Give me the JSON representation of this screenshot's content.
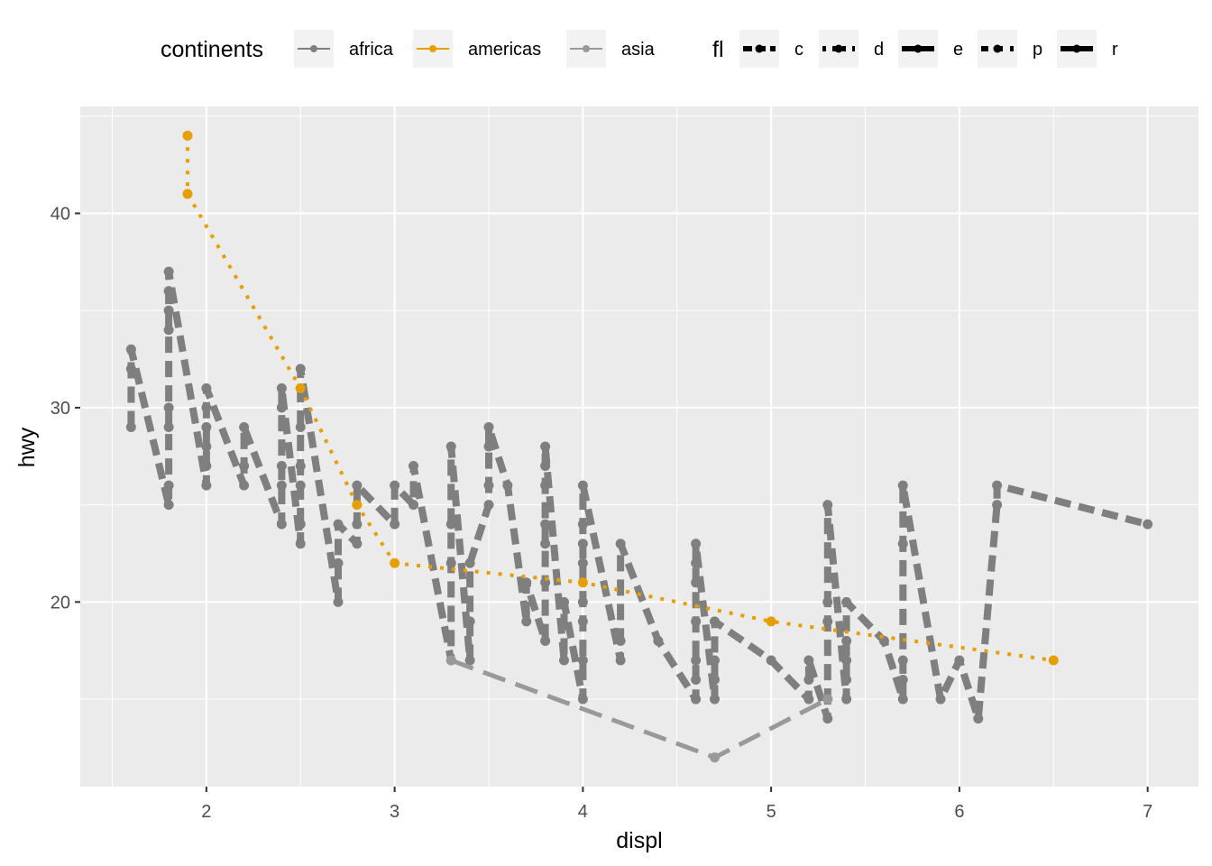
{
  "chart_data": {
    "type": "line",
    "xlabel": "displ",
    "ylabel": "hwy",
    "xlim": [
      1.33,
      7.27
    ],
    "ylim": [
      10.5,
      45.5
    ],
    "x_ticks": [
      2,
      3,
      4,
      5,
      6,
      7
    ],
    "y_ticks": [
      20,
      30,
      40
    ],
    "grid": true,
    "legend_position": "top",
    "legends": [
      {
        "title": "continents",
        "entries": [
          {
            "label": "africa",
            "color": "#7f7f7f"
          },
          {
            "label": "americas",
            "color": "#E69F00"
          },
          {
            "label": "asia",
            "color": "#999999"
          }
        ]
      },
      {
        "title": "fl",
        "entries": [
          {
            "label": "c",
            "dash": "10,5"
          },
          {
            "label": "d",
            "dash": "4,7"
          },
          {
            "label": "e",
            "dash": "16,5"
          },
          {
            "label": "p",
            "dash": "8,8"
          },
          {
            "label": "r",
            "dash": ""
          }
        ]
      }
    ],
    "series": [
      {
        "name": "africa",
        "color": "#7f7f7f",
        "width": 8,
        "dash": "18,9",
        "points": [
          [
            1.6,
            29
          ],
          [
            1.6,
            32
          ],
          [
            1.6,
            33
          ],
          [
            1.8,
            25
          ],
          [
            1.8,
            26
          ],
          [
            1.8,
            29
          ],
          [
            1.8,
            30
          ],
          [
            1.8,
            34
          ],
          [
            1.8,
            35
          ],
          [
            1.8,
            36
          ],
          [
            1.8,
            37
          ],
          [
            2.0,
            26
          ],
          [
            2.0,
            27
          ],
          [
            2.0,
            28
          ],
          [
            2.0,
            29
          ],
          [
            2.0,
            30
          ],
          [
            2.0,
            31
          ],
          [
            2.2,
            26
          ],
          [
            2.2,
            27
          ],
          [
            2.2,
            29
          ],
          [
            2.4,
            24
          ],
          [
            2.4,
            26
          ],
          [
            2.4,
            27
          ],
          [
            2.4,
            30
          ],
          [
            2.4,
            31
          ],
          [
            2.5,
            23
          ],
          [
            2.5,
            24
          ],
          [
            2.5,
            26
          ],
          [
            2.5,
            27
          ],
          [
            2.5,
            29
          ],
          [
            2.5,
            31
          ],
          [
            2.5,
            32
          ],
          [
            2.7,
            20
          ],
          [
            2.7,
            22
          ],
          [
            2.7,
            24
          ],
          [
            2.8,
            23
          ],
          [
            2.8,
            24
          ],
          [
            2.8,
            26
          ],
          [
            3.0,
            24
          ],
          [
            3.0,
            26
          ],
          [
            3.1,
            25
          ],
          [
            3.1,
            27
          ],
          [
            3.3,
            17
          ],
          [
            3.3,
            22
          ],
          [
            3.3,
            24
          ],
          [
            3.3,
            28
          ],
          [
            3.4,
            17
          ],
          [
            3.4,
            19
          ],
          [
            3.4,
            22
          ],
          [
            3.5,
            25
          ],
          [
            3.5,
            26
          ],
          [
            3.5,
            28
          ],
          [
            3.5,
            29
          ],
          [
            3.6,
            26
          ],
          [
            3.7,
            19
          ],
          [
            3.7,
            21
          ],
          [
            3.8,
            18
          ],
          [
            3.8,
            21
          ],
          [
            3.8,
            23
          ],
          [
            3.8,
            24
          ],
          [
            3.8,
            26
          ],
          [
            3.8,
            27
          ],
          [
            3.8,
            28
          ],
          [
            3.9,
            17
          ],
          [
            3.9,
            20
          ],
          [
            4.0,
            15
          ],
          [
            4.0,
            17
          ],
          [
            4.0,
            19
          ],
          [
            4.0,
            20
          ],
          [
            4.0,
            22
          ],
          [
            4.0,
            23
          ],
          [
            4.0,
            24
          ],
          [
            4.0,
            26
          ],
          [
            4.2,
            17
          ],
          [
            4.2,
            18
          ],
          [
            4.2,
            23
          ],
          [
            4.4,
            18
          ],
          [
            4.6,
            15
          ],
          [
            4.6,
            16
          ],
          [
            4.6,
            17
          ],
          [
            4.6,
            19
          ],
          [
            4.6,
            21
          ],
          [
            4.6,
            22
          ],
          [
            4.6,
            23
          ],
          [
            4.7,
            15
          ],
          [
            4.7,
            16
          ],
          [
            4.7,
            17
          ],
          [
            4.7,
            19
          ],
          [
            5.0,
            17
          ],
          [
            5.2,
            15
          ],
          [
            5.2,
            16
          ],
          [
            5.2,
            17
          ],
          [
            5.3,
            14
          ],
          [
            5.3,
            15
          ],
          [
            5.3,
            19
          ],
          [
            5.3,
            20
          ],
          [
            5.3,
            25
          ],
          [
            5.4,
            15
          ],
          [
            5.4,
            16
          ],
          [
            5.4,
            17
          ],
          [
            5.4,
            18
          ],
          [
            5.4,
            20
          ],
          [
            5.6,
            18
          ],
          [
            5.7,
            15
          ],
          [
            5.7,
            16
          ],
          [
            5.7,
            17
          ],
          [
            5.7,
            23
          ],
          [
            5.7,
            26
          ],
          [
            5.9,
            15
          ],
          [
            6.0,
            17
          ],
          [
            6.1,
            14
          ],
          [
            6.2,
            25
          ],
          [
            6.2,
            26
          ],
          [
            7.0,
            24
          ]
        ]
      },
      {
        "name": "americas",
        "color": "#E69F00",
        "width": 4,
        "dash": "4,9",
        "points": [
          [
            1.9,
            44
          ],
          [
            1.9,
            41
          ],
          [
            2.5,
            31
          ],
          [
            2.8,
            25
          ],
          [
            3.0,
            22
          ],
          [
            4.0,
            21
          ],
          [
            5.0,
            19
          ],
          [
            6.5,
            17
          ]
        ]
      },
      {
        "name": "asia",
        "color": "#999999",
        "width": 5,
        "dash": "26,12",
        "points": [
          [
            3.3,
            17
          ],
          [
            4.7,
            12
          ],
          [
            5.3,
            15
          ]
        ]
      }
    ]
  }
}
